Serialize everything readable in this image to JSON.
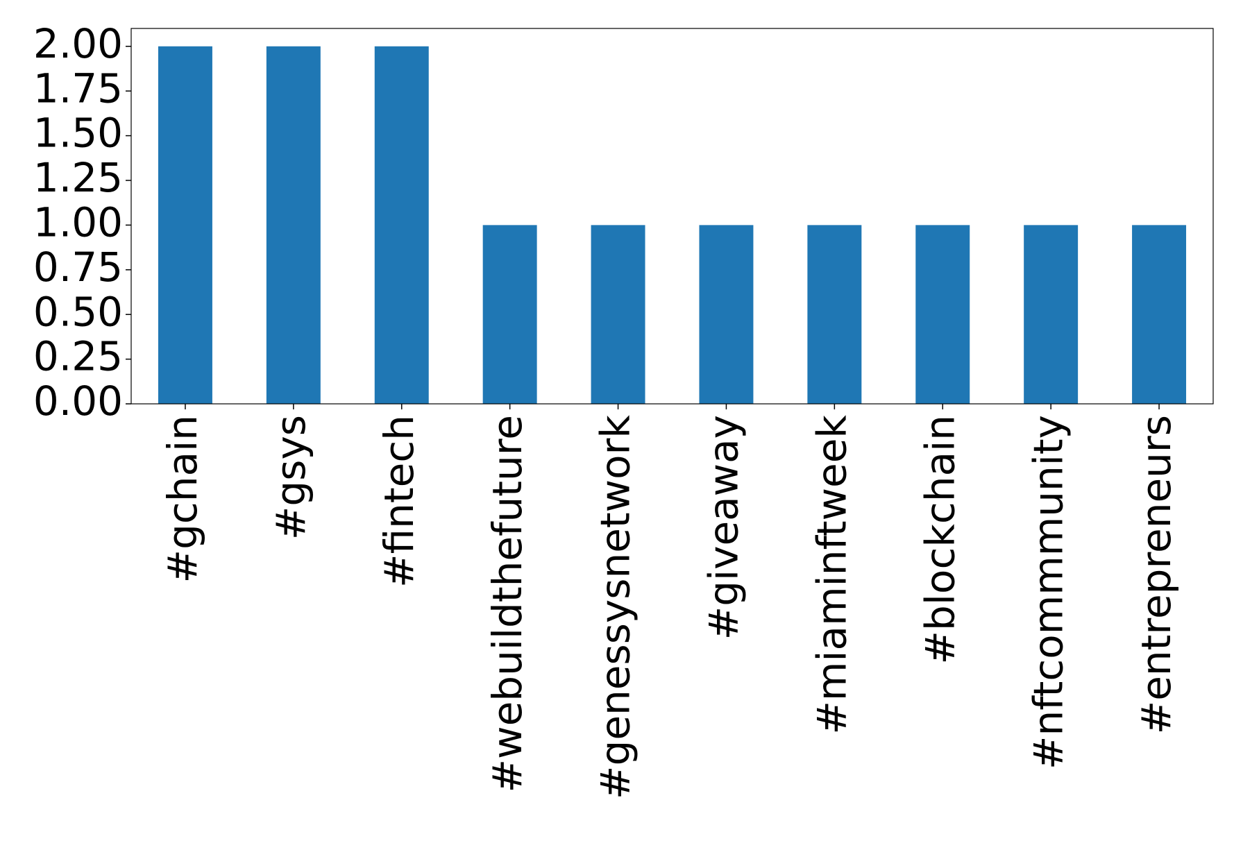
{
  "chart_data": {
    "type": "bar",
    "categories": [
      "#gchain",
      "#gsys",
      "#fintech",
      "#webuildthefuture",
      "#genessysnetwork",
      "#giveaway",
      "#miaminftweek",
      "#blockchain",
      "#nftcommmunity",
      "#entrepreneurs"
    ],
    "values": [
      2,
      2,
      2,
      1,
      1,
      1,
      1,
      1,
      1,
      1
    ],
    "color": "#1f77b4",
    "ylim": [
      0,
      2.1
    ],
    "yticks": [
      {
        "value": 0,
        "label": "0.00"
      },
      {
        "value": 0.25,
        "label": "0.25"
      },
      {
        "value": 0.5,
        "label": "0.50"
      },
      {
        "value": 0.75,
        "label": "0.75"
      },
      {
        "value": 1,
        "label": "1.00"
      },
      {
        "value": 1.25,
        "label": "1.25"
      },
      {
        "value": 1.5,
        "label": "1.50"
      },
      {
        "value": 1.75,
        "label": "1.75"
      },
      {
        "value": 2,
        "label": "2.00"
      }
    ],
    "grid": false
  }
}
